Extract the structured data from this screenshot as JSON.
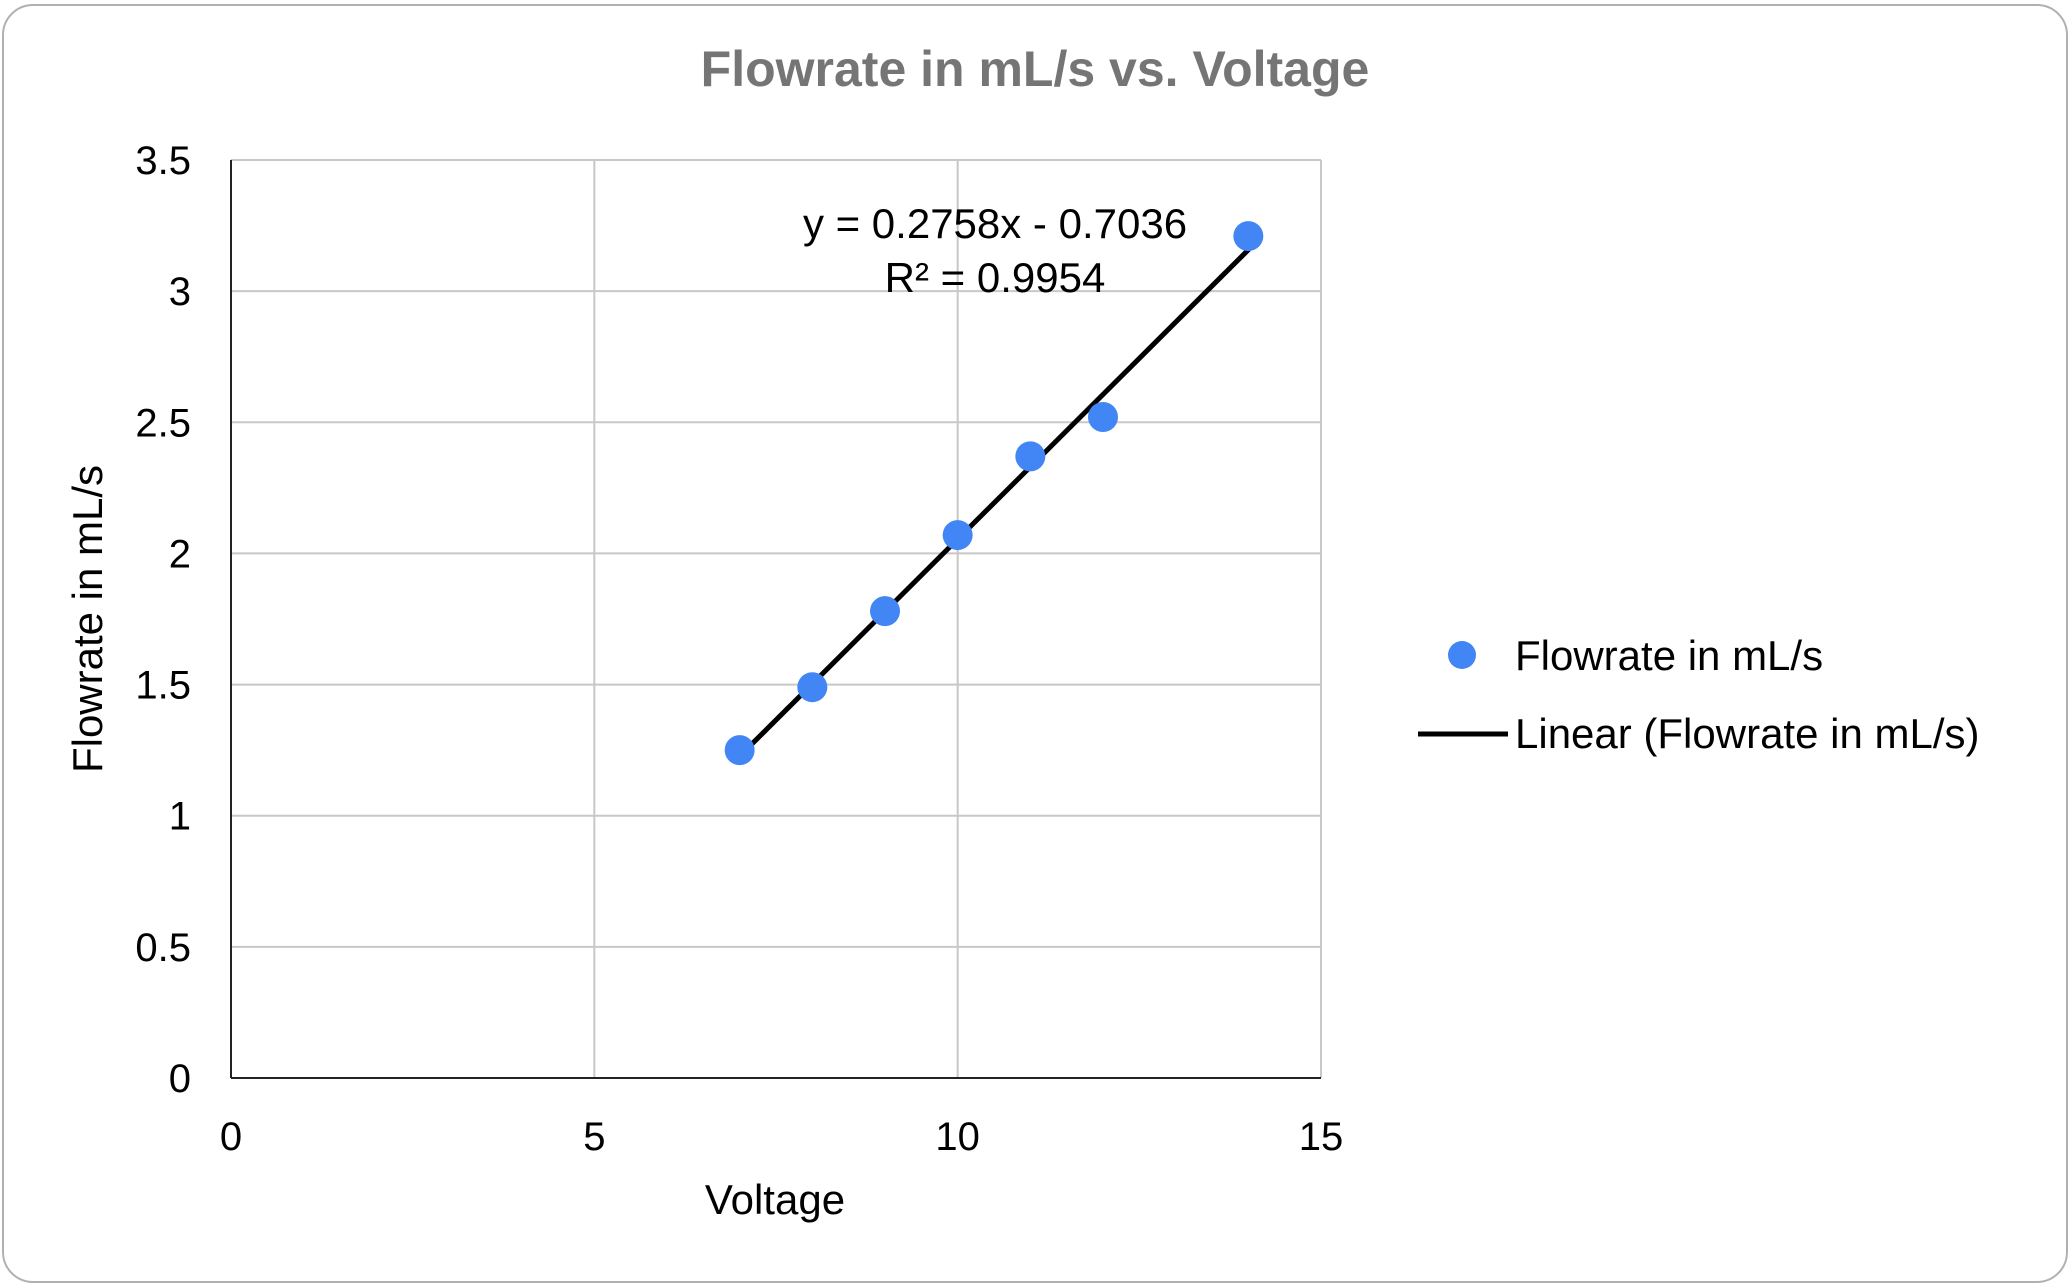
{
  "chart_data": {
    "type": "scatter",
    "title": "Flowrate in mL/s vs. Voltage",
    "xlabel": "Voltage",
    "ylabel": "Flowrate in mL/s",
    "xlim": [
      0,
      15
    ],
    "ylim": [
      0,
      3.5
    ],
    "x_ticks": [
      "0",
      "5",
      "10",
      "15"
    ],
    "y_ticks": [
      "0",
      "0.5",
      "1",
      "1.5",
      "2",
      "2.5",
      "3",
      "3.5"
    ],
    "grid": true,
    "series": [
      {
        "name": "Flowrate in mL/s",
        "x": [
          7,
          8,
          9,
          10,
          11,
          12,
          14
        ],
        "y": [
          1.25,
          1.49,
          1.78,
          2.07,
          2.37,
          2.52,
          3.21
        ]
      }
    ],
    "trendline": {
      "name": "Linear (Flowrate in mL/s)",
      "slope": 0.2758,
      "intercept": -0.7036,
      "x_range": [
        7,
        14
      ],
      "equation": "y = 0.2758x - 0.7036",
      "r_squared": "R² = 0.9954"
    },
    "legend_position": "right",
    "colors": {
      "point": "#4285F4",
      "trendline": "#000000",
      "title": "#757575",
      "grid": "#c8c8c8",
      "axis": "#222222",
      "border": "#b0b0b0"
    }
  }
}
